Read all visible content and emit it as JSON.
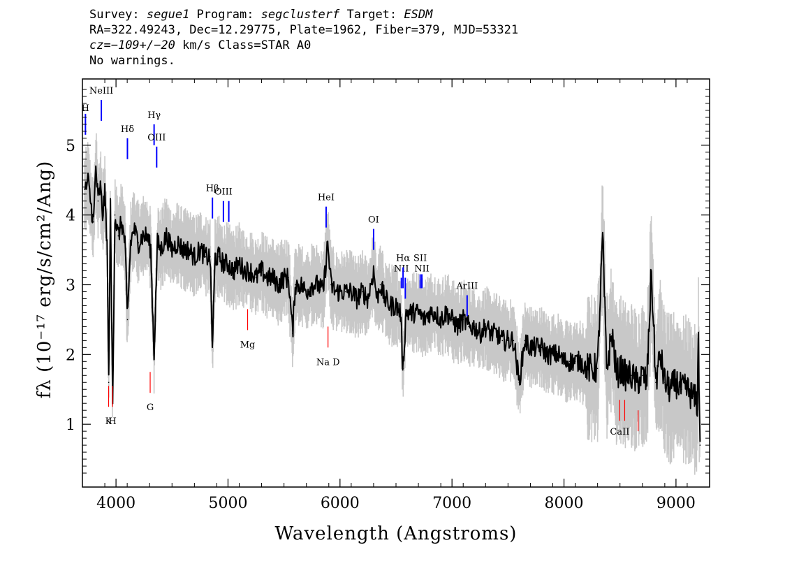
{
  "header": {
    "line1": {
      "survey_label": "Survey: ",
      "survey": "segue1",
      "program_label": " Program: ",
      "program": "segclusterf",
      "target_label": " Target: ",
      "target": "ESDM"
    },
    "line2": "RA=322.49243, Dec=12.29775, Plate=1962, Fiber=379, MJD=53321",
    "line3": {
      "cz_label": "cz=",
      "cz": "−109+/−20",
      "rest": " km/s Class=STAR A0"
    },
    "line4": "No warnings."
  },
  "chart_data": {
    "type": "line",
    "xlabel": "Wavelength (Angstroms)",
    "ylabel": "fλ (10⁻¹⁷ erg/s/cm²/Ang)",
    "xlim": [
      3700,
      9300
    ],
    "ylim": [
      0.1,
      5.95
    ],
    "x_ticks": [
      4000,
      5000,
      6000,
      7000,
      8000,
      9000
    ],
    "y_ticks": [
      1,
      2,
      3,
      4,
      5
    ],
    "series": [
      {
        "name": "flux",
        "color": "#000000",
        "points": [
          [
            3720,
            4.3
          ],
          [
            3750,
            4.5
          ],
          [
            3780,
            4.1
          ],
          [
            3800,
            3.9
          ],
          [
            3820,
            4.7
          ],
          [
            3840,
            4.2
          ],
          [
            3860,
            4.4
          ],
          [
            3880,
            4.0
          ],
          [
            3900,
            4.3
          ],
          [
            3920,
            3.6
          ],
          [
            3935,
            1.6
          ],
          [
            3950,
            4.1
          ],
          [
            3970,
            1.3
          ],
          [
            3990,
            4.0
          ],
          [
            4020,
            3.7
          ],
          [
            4050,
            3.9
          ],
          [
            4080,
            3.6
          ],
          [
            4102,
            2.5
          ],
          [
            4130,
            3.6
          ],
          [
            4160,
            3.8
          ],
          [
            4200,
            3.6
          ],
          [
            4240,
            3.7
          ],
          [
            4280,
            3.7
          ],
          [
            4310,
            3.5
          ],
          [
            4340,
            2.0
          ],
          [
            4370,
            3.6
          ],
          [
            4400,
            3.5
          ],
          [
            4450,
            3.7
          ],
          [
            4500,
            3.5
          ],
          [
            4550,
            3.6
          ],
          [
            4600,
            3.5
          ],
          [
            4650,
            3.5
          ],
          [
            4700,
            3.4
          ],
          [
            4750,
            3.5
          ],
          [
            4800,
            3.4
          ],
          [
            4840,
            3.4
          ],
          [
            4861,
            2.1
          ],
          [
            4885,
            3.4
          ],
          [
            4920,
            3.4
          ],
          [
            4960,
            3.3
          ],
          [
            5000,
            3.3
          ],
          [
            5050,
            3.2
          ],
          [
            5100,
            3.3
          ],
          [
            5150,
            3.2
          ],
          [
            5200,
            3.2
          ],
          [
            5250,
            3.1
          ],
          [
            5300,
            3.2
          ],
          [
            5350,
            3.1
          ],
          [
            5400,
            3.1
          ],
          [
            5450,
            3.0
          ],
          [
            5500,
            3.1
          ],
          [
            5540,
            3.1
          ],
          [
            5577,
            2.3
          ],
          [
            5600,
            3.0
          ],
          [
            5650,
            3.0
          ],
          [
            5700,
            2.9
          ],
          [
            5750,
            3.0
          ],
          [
            5800,
            3.0
          ],
          [
            5850,
            2.9
          ],
          [
            5890,
            3.6
          ],
          [
            5920,
            3.0
          ],
          [
            5960,
            2.9
          ],
          [
            6000,
            2.9
          ],
          [
            6050,
            2.9
          ],
          [
            6100,
            2.9
          ],
          [
            6150,
            2.8
          ],
          [
            6200,
            2.9
          ],
          [
            6250,
            2.8
          ],
          [
            6300,
            3.2
          ],
          [
            6330,
            2.8
          ],
          [
            6360,
            3.0
          ],
          [
            6400,
            2.8
          ],
          [
            6450,
            2.7
          ],
          [
            6500,
            2.7
          ],
          [
            6540,
            2.6
          ],
          [
            6563,
            1.8
          ],
          [
            6590,
            2.6
          ],
          [
            6650,
            2.6
          ],
          [
            6700,
            2.6
          ],
          [
            6750,
            2.5
          ],
          [
            6800,
            2.6
          ],
          [
            6850,
            2.6
          ],
          [
            6900,
            2.5
          ],
          [
            6950,
            2.6
          ],
          [
            7000,
            2.5
          ],
          [
            7050,
            2.4
          ],
          [
            7100,
            2.5
          ],
          [
            7150,
            2.4
          ],
          [
            7200,
            2.4
          ],
          [
            7250,
            2.3
          ],
          [
            7300,
            2.4
          ],
          [
            7350,
            2.3
          ],
          [
            7400,
            2.3
          ],
          [
            7450,
            2.2
          ],
          [
            7500,
            2.2
          ],
          [
            7550,
            2.2
          ],
          [
            7600,
            1.6
          ],
          [
            7650,
            2.2
          ],
          [
            7700,
            2.1
          ],
          [
            7750,
            2.1
          ],
          [
            7800,
            2.1
          ],
          [
            7850,
            2.0
          ],
          [
            7900,
            2.0
          ],
          [
            7950,
            2.0
          ],
          [
            8000,
            1.9
          ],
          [
            8050,
            1.9
          ],
          [
            8100,
            1.9
          ],
          [
            8150,
            1.9
          ],
          [
            8200,
            1.8
          ],
          [
            8250,
            1.8
          ],
          [
            8300,
            1.8
          ],
          [
            8345,
            3.7
          ],
          [
            8380,
            1.8
          ],
          [
            8430,
            2.3
          ],
          [
            8470,
            1.7
          ],
          [
            8500,
            1.8
          ],
          [
            8550,
            1.7
          ],
          [
            8600,
            1.7
          ],
          [
            8650,
            1.6
          ],
          [
            8700,
            1.7
          ],
          [
            8740,
            1.6
          ],
          [
            8780,
            3.2
          ],
          [
            8820,
            1.6
          ],
          [
            8860,
            2.0
          ],
          [
            8900,
            1.6
          ],
          [
            8950,
            1.5
          ],
          [
            9000,
            1.6
          ],
          [
            9050,
            1.5
          ],
          [
            9100,
            1.5
          ],
          [
            9150,
            1.4
          ],
          [
            9190,
            1.3
          ],
          [
            9200,
            2.2
          ],
          [
            9215,
            0.7
          ]
        ]
      }
    ],
    "lines": [
      {
        "label": "H",
        "wavelength": 3727,
        "kind": "emission",
        "y_top": 5.45,
        "y_bot": 5.15,
        "label_y": 5.45
      },
      {
        "label": "NeIII",
        "wavelength": 3869,
        "kind": "emission",
        "y_top": 5.65,
        "y_bot": 5.35,
        "label_y": 5.7
      },
      {
        "label": "Hδ",
        "wavelength": 4102,
        "kind": "emission",
        "y_top": 5.1,
        "y_bot": 4.8,
        "label_y": 5.15
      },
      {
        "label": "Hγ",
        "wavelength": 4340,
        "kind": "emission",
        "y_top": 5.3,
        "y_bot": 5.0,
        "label_y": 5.35
      },
      {
        "label": "OIII",
        "wavelength": 4363,
        "kind": "emission",
        "y_top": 4.98,
        "y_bot": 4.68,
        "label_y": 5.03
      },
      {
        "label": "Hβ",
        "wavelength": 4861,
        "kind": "emission",
        "y_top": 4.25,
        "y_bot": 3.95,
        "label_y": 4.3
      },
      {
        "label": "OIII",
        "wavelength": 4959,
        "kind": "emission",
        "y_top": 4.2,
        "y_bot": 3.9,
        "label_y": 4.25
      },
      {
        "label": "",
        "wavelength": 5007,
        "kind": "emission",
        "y_top": 4.2,
        "y_bot": 3.9,
        "label_y": 4.2
      },
      {
        "label": "HeI",
        "wavelength": 5876,
        "kind": "emission",
        "y_top": 4.12,
        "y_bot": 3.82,
        "label_y": 4.17
      },
      {
        "label": "OI",
        "wavelength": 6300,
        "kind": "emission",
        "y_top": 3.8,
        "y_bot": 3.5,
        "label_y": 3.85
      },
      {
        "label": "NII",
        "wavelength": 6548,
        "kind": "emission",
        "y_top": 3.1,
        "y_bot": 2.95,
        "label_y": 3.15
      },
      {
        "label": "Hα",
        "wavelength": 6563,
        "kind": "emission",
        "y_top": 3.25,
        "y_bot": 2.95,
        "label_y": 3.3
      },
      {
        "label": "",
        "wavelength": 6583,
        "kind": "emission",
        "y_top": 3.1,
        "y_bot": 2.8,
        "label_y": 3.1
      },
      {
        "label": "SII",
        "wavelength": 6716,
        "kind": "emission",
        "y_top": 3.15,
        "y_bot": 2.95,
        "label_y": 3.3
      },
      {
        "label": "NII",
        "wavelength": 6731,
        "kind": "emission",
        "y_top": 3.15,
        "y_bot": 2.95,
        "label_y": 3.15
      },
      {
        "label": "ArIII",
        "wavelength": 7135,
        "kind": "emission",
        "y_top": 2.85,
        "y_bot": 2.55,
        "label_y": 2.9
      },
      {
        "label": "Mg",
        "wavelength": 5175,
        "kind": "absorption",
        "y_top": 2.65,
        "y_bot": 2.35,
        "label_y": 2.2
      },
      {
        "label": "Na D",
        "wavelength": 5893,
        "kind": "absorption",
        "y_top": 2.4,
        "y_bot": 2.1,
        "label_y": 1.95
      },
      {
        "label": "K",
        "wavelength": 3934,
        "kind": "absorption",
        "y_top": 1.55,
        "y_bot": 1.25,
        "label_y": 1.1
      },
      {
        "label": "H",
        "wavelength": 3969,
        "kind": "absorption",
        "y_top": 1.55,
        "y_bot": 1.25,
        "label_y": 1.1
      },
      {
        "label": "G",
        "wavelength": 4305,
        "kind": "absorption",
        "y_top": 1.75,
        "y_bot": 1.45,
        "label_y": 1.3
      },
      {
        "label": "CaII",
        "wavelength": 8498,
        "kind": "absorption",
        "y_top": 1.35,
        "y_bot": 1.05,
        "label_y": 0.95
      },
      {
        "label": "",
        "wavelength": 8542,
        "kind": "absorption",
        "y_top": 1.35,
        "y_bot": 1.05,
        "label_y": 0.95
      },
      {
        "label": "",
        "wavelength": 8662,
        "kind": "absorption",
        "y_top": 1.2,
        "y_bot": 0.9,
        "label_y": 0.9
      }
    ],
    "colors": {
      "flux": "#000000",
      "error_band": "#c8c8c8",
      "emission": "#0000ff",
      "absorption": "#ff0000"
    }
  }
}
